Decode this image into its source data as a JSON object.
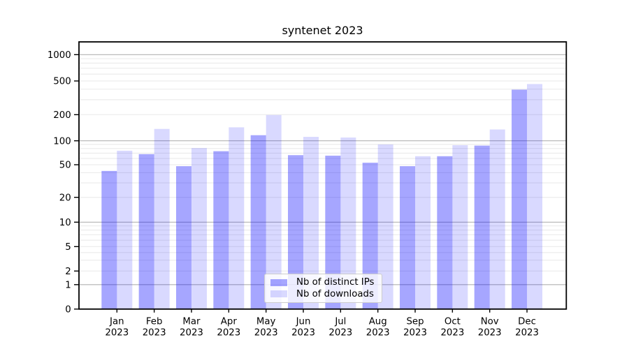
{
  "chart_data": {
    "type": "bar",
    "title": "syntenet 2023",
    "months": [
      "Jan",
      "Feb",
      "Mar",
      "Apr",
      "May",
      "Jun",
      "Jul",
      "Aug",
      "Sep",
      "Oct",
      "Nov",
      "Dec"
    ],
    "year": "2023",
    "series": [
      {
        "name": "Nb of distinct IPs",
        "color": "rgba(0,0,255,0.35)",
        "values": [
          42,
          68,
          48,
          74,
          116,
          66,
          65,
          53,
          48,
          64,
          87,
          395
        ]
      },
      {
        "name": "Nb of downloads",
        "color": "rgba(0,0,255,0.15)",
        "values": [
          75,
          137,
          81,
          143,
          198,
          111,
          109,
          90,
          64,
          88,
          135,
          460
        ]
      }
    ],
    "y_ticks": [
      0,
      1,
      2,
      5,
      10,
      20,
      50,
      100,
      200,
      500,
      1000
    ],
    "y_scale": "log1p",
    "ylim": [
      0,
      1400
    ],
    "grid": true,
    "legend_position": "lower center",
    "axis_color": "#000000",
    "major_grid_color": "#b2b2b2",
    "minor_grid_color": "#e8e8e8",
    "text_color": "#000000"
  }
}
